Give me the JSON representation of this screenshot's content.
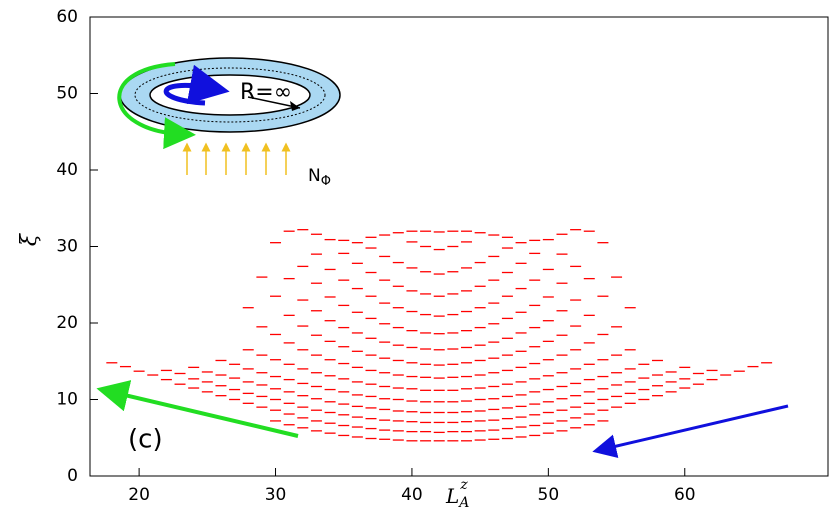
{
  "chart_data": {
    "type": "levels",
    "xlabel": {
      "base": "L",
      "sub": "A",
      "sup": "z"
    },
    "ylabel": "ξ",
    "annotation": "(c)",
    "inset": {
      "radius_label": "R=∞",
      "flux_base": "N",
      "flux_sub": "Φ"
    },
    "color": "#ff0000",
    "xlim": [
      16.4,
      70.5
    ],
    "xticks": [
      20,
      30,
      40,
      50,
      60
    ],
    "ylim": [
      0,
      60
    ],
    "yticks": [
      0,
      10,
      20,
      30,
      40,
      50,
      60
    ],
    "x": [
      18,
      19,
      20,
      21,
      22,
      23,
      24,
      25,
      26,
      27,
      28,
      29,
      30,
      31,
      32,
      33,
      34,
      35,
      36,
      37,
      38,
      39,
      40,
      41,
      42,
      43,
      44,
      45,
      46,
      47,
      48,
      49,
      50,
      51,
      52,
      53,
      54,
      55,
      56,
      57,
      58,
      59,
      60,
      61,
      62,
      63,
      64,
      65,
      66
    ],
    "values": [
      [
        14.8
      ],
      [
        14.3
      ],
      [
        13.7
      ],
      [
        13.2
      ],
      [
        12.6,
        13.8
      ],
      [
        12.0,
        13.4
      ],
      [
        11.5,
        12.7,
        14.2
      ],
      [
        11.0,
        12.3,
        13.6
      ],
      [
        10.5,
        11.8,
        13.2,
        15.1
      ],
      [
        10.0,
        11.3,
        12.8,
        14.6
      ],
      [
        9.5,
        10.8,
        12.3,
        14.0,
        16.5,
        22.0
      ],
      [
        9.0,
        10.4,
        11.9,
        13.5,
        15.8,
        19.5,
        26.0
      ],
      [
        7.2,
        8.6,
        10.0,
        11.4,
        13.0,
        15.2,
        18.5,
        23.5,
        30.5
      ],
      [
        6.7,
        8.1,
        9.5,
        11.0,
        12.6,
        14.6,
        17.4,
        21.0,
        25.8,
        32.0
      ],
      [
        6.3,
        7.6,
        9.0,
        10.5,
        12.1,
        14.0,
        16.5,
        19.6,
        23.0,
        27.4,
        32.2
      ],
      [
        5.9,
        7.2,
        8.6,
        10.1,
        11.7,
        13.5,
        15.8,
        18.4,
        21.6,
        25.2,
        29.0,
        31.6
      ],
      [
        5.6,
        6.9,
        8.3,
        9.7,
        11.3,
        13.1,
        15.2,
        17.6,
        20.3,
        23.4,
        27.0,
        30.9
      ],
      [
        5.3,
        6.6,
        8.0,
        9.4,
        11.0,
        12.7,
        14.7,
        16.9,
        19.4,
        22.3,
        25.6,
        29.1,
        30.8
      ],
      [
        5.1,
        6.4,
        7.7,
        9.1,
        10.6,
        12.3,
        14.2,
        16.3,
        18.7,
        21.4,
        24.5,
        27.8,
        30.5
      ],
      [
        4.9,
        6.2,
        7.5,
        8.9,
        10.4,
        12.0,
        13.8,
        15.8,
        18.0,
        20.6,
        23.5,
        26.6,
        29.8,
        31.2
      ],
      [
        4.8,
        6.0,
        7.3,
        8.7,
        10.1,
        11.7,
        13.5,
        15.4,
        17.5,
        19.9,
        22.6,
        25.6,
        28.7,
        31.5
      ],
      [
        4.7,
        5.9,
        7.2,
        8.5,
        10.0,
        11.5,
        13.2,
        15.1,
        17.1,
        19.4,
        22.0,
        24.8,
        27.9,
        31.8
      ],
      [
        4.6,
        5.8,
        7.1,
        8.4,
        9.8,
        11.4,
        13.0,
        14.8,
        16.8,
        19.0,
        21.5,
        24.2,
        27.2,
        30.6,
        32.0
      ],
      [
        4.6,
        5.8,
        7.0,
        8.3,
        9.7,
        11.2,
        12.9,
        14.6,
        16.6,
        18.7,
        21.1,
        23.8,
        26.7,
        30.0,
        32.0
      ],
      [
        4.6,
        5.7,
        7.0,
        8.3,
        9.7,
        11.2,
        12.8,
        14.5,
        16.5,
        18.6,
        20.9,
        23.5,
        26.4,
        29.6,
        31.9
      ],
      [
        4.6,
        5.8,
        7.0,
        8.3,
        9.7,
        11.2,
        12.9,
        14.6,
        16.6,
        18.7,
        21.1,
        23.8,
        26.7,
        30.0,
        32.0
      ],
      [
        4.6,
        5.8,
        7.1,
        8.4,
        9.8,
        11.4,
        13.0,
        14.8,
        16.8,
        19.0,
        21.5,
        24.2,
        27.2,
        30.6,
        32.0
      ],
      [
        4.7,
        5.9,
        7.2,
        8.5,
        10.0,
        11.5,
        13.2,
        15.1,
        17.1,
        19.4,
        22.0,
        24.8,
        27.9,
        31.8
      ],
      [
        4.8,
        6.0,
        7.3,
        8.7,
        10.1,
        11.7,
        13.5,
        15.4,
        17.5,
        19.9,
        22.6,
        25.6,
        28.7,
        31.5
      ],
      [
        4.9,
        6.2,
        7.5,
        8.9,
        10.4,
        12.0,
        13.8,
        15.8,
        18.0,
        20.6,
        23.5,
        26.6,
        29.8,
        31.2
      ],
      [
        5.1,
        6.4,
        7.7,
        9.1,
        10.6,
        12.3,
        14.2,
        16.3,
        18.7,
        21.4,
        24.5,
        27.8,
        30.5
      ],
      [
        5.3,
        6.6,
        8.0,
        9.4,
        11.0,
        12.7,
        14.7,
        16.9,
        19.4,
        22.3,
        25.6,
        29.1,
        30.8
      ],
      [
        5.6,
        6.9,
        8.3,
        9.7,
        11.3,
        13.1,
        15.2,
        17.6,
        20.3,
        23.4,
        27.0,
        30.9
      ],
      [
        5.9,
        7.2,
        8.6,
        10.1,
        11.7,
        13.5,
        15.8,
        18.4,
        21.6,
        25.2,
        29.0,
        31.6
      ],
      [
        6.3,
        7.6,
        9.0,
        10.5,
        12.1,
        14.0,
        16.5,
        19.6,
        23.0,
        27.4,
        32.2
      ],
      [
        6.7,
        8.1,
        9.5,
        11.0,
        12.6,
        14.6,
        17.4,
        21.0,
        25.8,
        32.0
      ],
      [
        7.2,
        8.6,
        10.0,
        11.4,
        13.0,
        15.2,
        18.5,
        23.5,
        30.5
      ],
      [
        9.0,
        10.4,
        11.9,
        13.5,
        15.8,
        19.5,
        26.0
      ],
      [
        9.5,
        10.8,
        12.3,
        14.0,
        16.5,
        22.0
      ],
      [
        10.0,
        11.3,
        12.8,
        14.6
      ],
      [
        10.5,
        11.8,
        13.2,
        15.1
      ],
      [
        11.0,
        12.3,
        13.6
      ],
      [
        11.5,
        12.7,
        14.2
      ],
      [
        12.0,
        13.4
      ],
      [
        12.6,
        13.8
      ],
      [
        13.2
      ],
      [
        13.7
      ],
      [
        14.3
      ],
      [
        14.8
      ]
    ]
  }
}
